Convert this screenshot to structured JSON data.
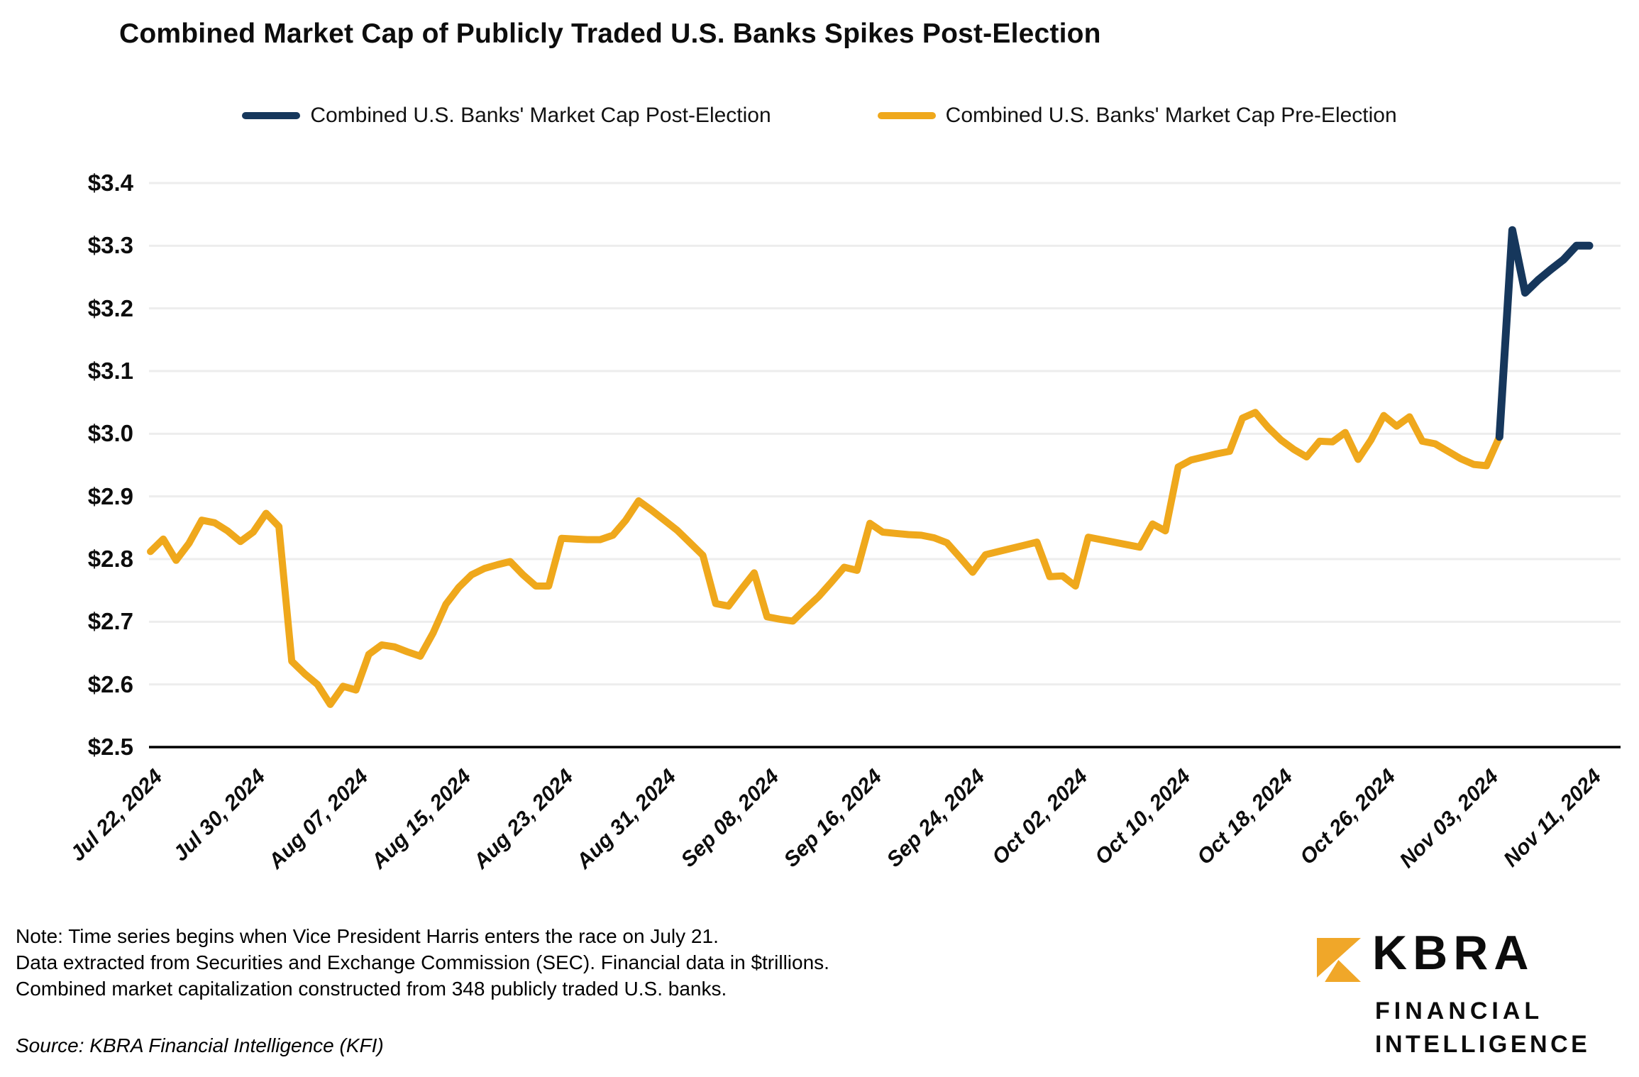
{
  "title": "Combined Market Cap of Publicly Traded U.S. Banks Spikes Post-Election",
  "colors": {
    "post_election_line": "#16375C",
    "pre_election_line": "#EFA81C",
    "gridline": "#EDEDED",
    "axis_line": "#000000",
    "logo_gold": "#F0A729",
    "text": "#0D0D0D"
  },
  "y_axis": {
    "tick_labels": [
      "$3.4",
      "$3.3",
      "$3.2",
      "$3.1",
      "$3.0",
      "$2.9",
      "$2.8",
      "$2.7",
      "$2.6",
      "$2.5"
    ],
    "tick_values": [
      3.4,
      3.3,
      3.2,
      3.1,
      3.0,
      2.9,
      2.8,
      2.7,
      2.6,
      2.5
    ]
  },
  "x_axis": {
    "tick_labels": [
      "Jul 22, 2024",
      "Jul 30, 2024",
      "Aug 07, 2024",
      "Aug 15, 2024",
      "Aug 23, 2024",
      "Aug 31, 2024",
      "Sep 08, 2024",
      "Sep 16, 2024",
      "Sep 24, 2024",
      "Oct 02, 2024",
      "Oct 10, 2024",
      "Oct 18, 2024",
      "Oct 26, 2024",
      "Nov 03, 2024",
      "Nov 11, 2024"
    ],
    "tick_interval_days": 8
  },
  "chart_data": {
    "type": "line",
    "title": "Combined Market Cap of Publicly Traded U.S. Banks Spikes Post-Election",
    "unit": "$ trillions",
    "ylim": [
      2.5,
      3.4
    ],
    "x_range": [
      "Jul 22, 2024",
      "Nov 11, 2024"
    ],
    "grid": "horizontal",
    "legend_position": "top",
    "series": [
      {
        "key": "post",
        "name": "Combined U.S. Banks' Market Cap Post-Election",
        "color": "#16375C",
        "start_date": "Nov 04, 2024",
        "end_date": "Nov 11, 2024",
        "frequency": "daily",
        "dates": [
          "Nov 04, 2024",
          "Nov 05, 2024",
          "Nov 06, 2024",
          "Nov 07, 2024",
          "Nov 08, 2024",
          "Nov 09, 2024",
          "Nov 10, 2024",
          "Nov 11, 2024"
        ],
        "values": [
          2.995,
          3.325,
          3.225,
          3.245,
          3.262,
          3.278,
          3.3,
          3.3
        ]
      },
      {
        "key": "pre",
        "name": "Combined U.S. Banks' Market Cap Pre-Election",
        "color": "#EFA81C",
        "start_date": "Jul 22, 2024",
        "end_date": "Nov 04, 2024",
        "frequency": "daily",
        "values": [
          2.812,
          2.832,
          2.798,
          2.825,
          2.862,
          2.858,
          2.845,
          2.828,
          2.843,
          2.873,
          2.852,
          2.637,
          2.617,
          2.6,
          2.568,
          2.597,
          2.591,
          2.648,
          2.663,
          2.66,
          2.652,
          2.645,
          2.682,
          2.728,
          2.755,
          2.775,
          2.785,
          2.791,
          2.796,
          2.775,
          2.757,
          2.757,
          2.833,
          2.832,
          2.831,
          2.831,
          2.838,
          2.862,
          2.893,
          2.878,
          2.862,
          2.846,
          2.826,
          2.806,
          2.729,
          2.725,
          2.752,
          2.778,
          2.708,
          2.704,
          2.701,
          2.721,
          2.74,
          2.763,
          2.787,
          2.782,
          2.857,
          2.843,
          2.841,
          2.839,
          2.838,
          2.834,
          2.826,
          2.803,
          2.779,
          2.807,
          2.812,
          2.817,
          2.822,
          2.827,
          2.772,
          2.773,
          2.757,
          2.835,
          2.831,
          2.827,
          2.823,
          2.819,
          2.856,
          2.845,
          2.947,
          2.958,
          2.963,
          2.968,
          2.972,
          3.025,
          3.034,
          3.01,
          2.99,
          2.975,
          2.963,
          2.988,
          2.987,
          3.002,
          2.959,
          2.99,
          3.029,
          3.012,
          3.027,
          2.988,
          2.984,
          2.972,
          2.96,
          2.951,
          2.949,
          2.995
        ]
      }
    ]
  },
  "notes": {
    "line1": "Note: Time series begins when Vice President Harris enters the race on July 21.",
    "line2": "Data extracted from Securities and Exchange Commission (SEC). Financial data in $trillions.",
    "line3": "Combined market capitalization constructed from 348 publicly traded U.S. banks.",
    "source": "Source: KBRA Financial Intelligence (KFI)"
  },
  "logo": {
    "brand": "KBRA",
    "sub_line1": "FINANCIAL",
    "sub_line2": "INTELLIGENCE"
  }
}
